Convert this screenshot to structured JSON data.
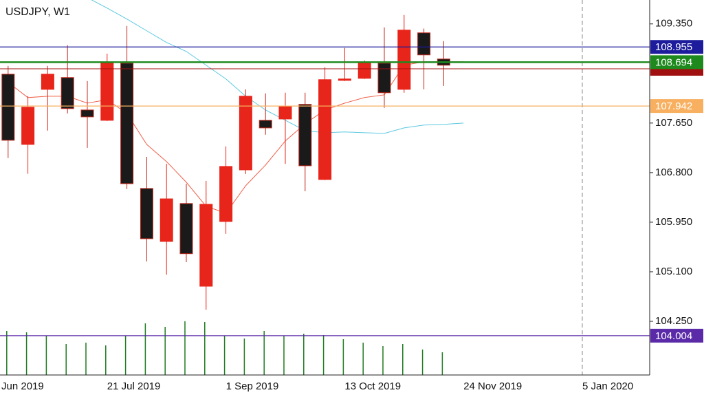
{
  "chart_data": {
    "type": "candlestick",
    "title": "USDJPY, W1",
    "categories": [
      "Jun 2019",
      null,
      null,
      null,
      null,
      null,
      "21 Jul 2019",
      null,
      null,
      null,
      null,
      null,
      "1 Sep 2019",
      null,
      null,
      null,
      null,
      null,
      "13 Oct 2019",
      null,
      null,
      null,
      null,
      null,
      "24 Nov 2019",
      null,
      null,
      null,
      null,
      null,
      "5 Jan 2020"
    ],
    "open": [
      null,
      108.488,
      107.284,
      108.228,
      108.43,
      107.874,
      107.697,
      108.677,
      106.528,
      105.62,
      106.27,
      104.852,
      105.962,
      106.847,
      107.697,
      107.72,
      107.97,
      106.682,
      108.382,
      108.417,
      108.677,
      108.228,
      109.197,
      108.748,
      null,
      null,
      null,
      null,
      null,
      null,
      null
    ],
    "high": [
      null,
      108.63,
      108.11,
      108.63,
      108.984,
      108.37,
      108.84,
      109.315,
      107.07,
      106.95,
      106.61,
      106.658,
      107.25,
      108.228,
      108.158,
      108.17,
      108.17,
      108.606,
      108.937,
      108.724,
      109.29,
      109.503,
      109.27,
      109.055,
      null,
      null,
      null,
      null,
      null,
      null,
      null
    ],
    "low": [
      null,
      107.05,
      106.78,
      107.52,
      107.815,
      107.225,
      107.685,
      106.517,
      105.277,
      105.05,
      105.265,
      104.45,
      105.75,
      106.776,
      107.45,
      106.95,
      106.48,
      106.67,
      108.37,
      108.406,
      107.91,
      108.17,
      108.228,
      108.287,
      null,
      null,
      null,
      null,
      null,
      null,
      null
    ],
    "close": [
      null,
      107.355,
      107.922,
      108.488,
      107.898,
      107.756,
      108.677,
      106.611,
      105.667,
      106.35,
      105.41,
      106.257,
      106.906,
      108.11,
      107.567,
      107.933,
      106.918,
      108.394,
      108.406,
      108.677,
      108.17,
      109.244,
      108.819,
      108.642,
      null,
      null,
      null,
      null,
      null,
      null,
      null
    ],
    "up_color": "#e8251a",
    "down_color": "#1a1a1a",
    "volume": [
      null,
      64,
      62,
      57,
      45,
      47,
      43,
      57,
      75,
      70,
      78,
      77,
      57,
      53,
      64,
      57,
      60,
      58,
      52,
      47,
      42,
      45,
      37,
      33,
      null,
      null,
      null,
      null,
      null,
      null,
      null
    ],
    "volume_color": "#1e7a1e",
    "series": [
      {
        "color": "#f0604a",
        "values": [
          null,
          108.347,
          108.087,
          108.11,
          108.11,
          107.992,
          108.051,
          107.815,
          107.284,
          106.989,
          106.635,
          106.222,
          106.104,
          106.576,
          106.93,
          107.343,
          107.638,
          107.874,
          107.992,
          108.087,
          108.134,
          108.642,
          108.701,
          108.701,
          108.701,
          null,
          null,
          null,
          null,
          null,
          null
        ]
      },
      {
        "color": "#5cc8e0",
        "values": [
          null,
          null,
          null,
          null,
          null,
          109.8,
          109.622,
          109.433,
          109.232,
          109.032,
          108.878,
          108.642,
          108.406,
          108.11,
          107.874,
          107.697,
          107.52,
          107.485,
          107.497,
          107.485,
          107.473,
          107.567,
          107.615,
          107.627,
          107.65,
          null,
          null,
          null,
          null,
          null,
          null
        ]
      }
    ],
    "levels": [
      {
        "value": 108.955,
        "label": "108.955",
        "color": "#1c1c9c"
      },
      {
        "value": 108.58,
        "color": "#a01010"
      },
      {
        "value": 108.694,
        "label": "108.694",
        "color": "#1e8a1e"
      },
      {
        "value": 107.942,
        "label": "107.942",
        "color": "#f8b060"
      },
      {
        "value": 104.004,
        "label": "104.004",
        "color": "#5a2aa8"
      }
    ],
    "ylim": [
      103.33,
      109.76
    ],
    "yticks": [
      {
        "value": 109.35,
        "label": "109.350"
      },
      {
        "value": 107.65,
        "label": "107.650"
      },
      {
        "value": 106.8,
        "label": "106.800"
      },
      {
        "value": 105.95,
        "label": "105.950"
      },
      {
        "value": 105.1,
        "label": "105.100"
      },
      {
        "value": 104.25,
        "label": "104.250"
      }
    ]
  }
}
